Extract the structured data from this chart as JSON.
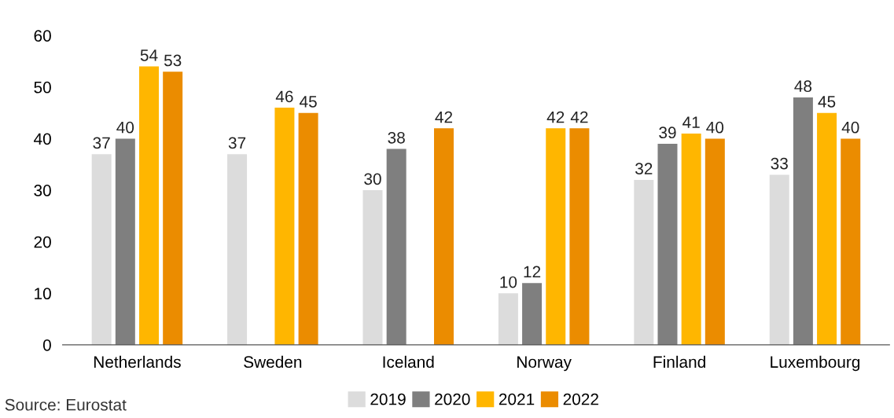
{
  "chart_data": {
    "type": "bar",
    "categories": [
      "Netherlands",
      "Sweden",
      "Iceland",
      "Norway",
      "Finland",
      "Luxembourg"
    ],
    "series": [
      {
        "name": "2019",
        "color": "#dcdcdc",
        "values": [
          37,
          37,
          30,
          10,
          32,
          33
        ]
      },
      {
        "name": "2020",
        "color": "#7f7f7f",
        "values": [
          40,
          null,
          38,
          12,
          39,
          48
        ]
      },
      {
        "name": "2021",
        "color": "#ffb600",
        "values": [
          54,
          46,
          null,
          42,
          41,
          45
        ]
      },
      {
        "name": "2022",
        "color": "#eb8c00",
        "values": [
          53,
          45,
          42,
          42,
          40,
          40
        ]
      }
    ],
    "ylim": [
      0,
      60
    ],
    "yticks": [
      0,
      10,
      20,
      30,
      40,
      50,
      60
    ],
    "data_labels": true,
    "grid": false,
    "legend": "bottom",
    "annotations": [
      "Source: Eurostat"
    ]
  }
}
